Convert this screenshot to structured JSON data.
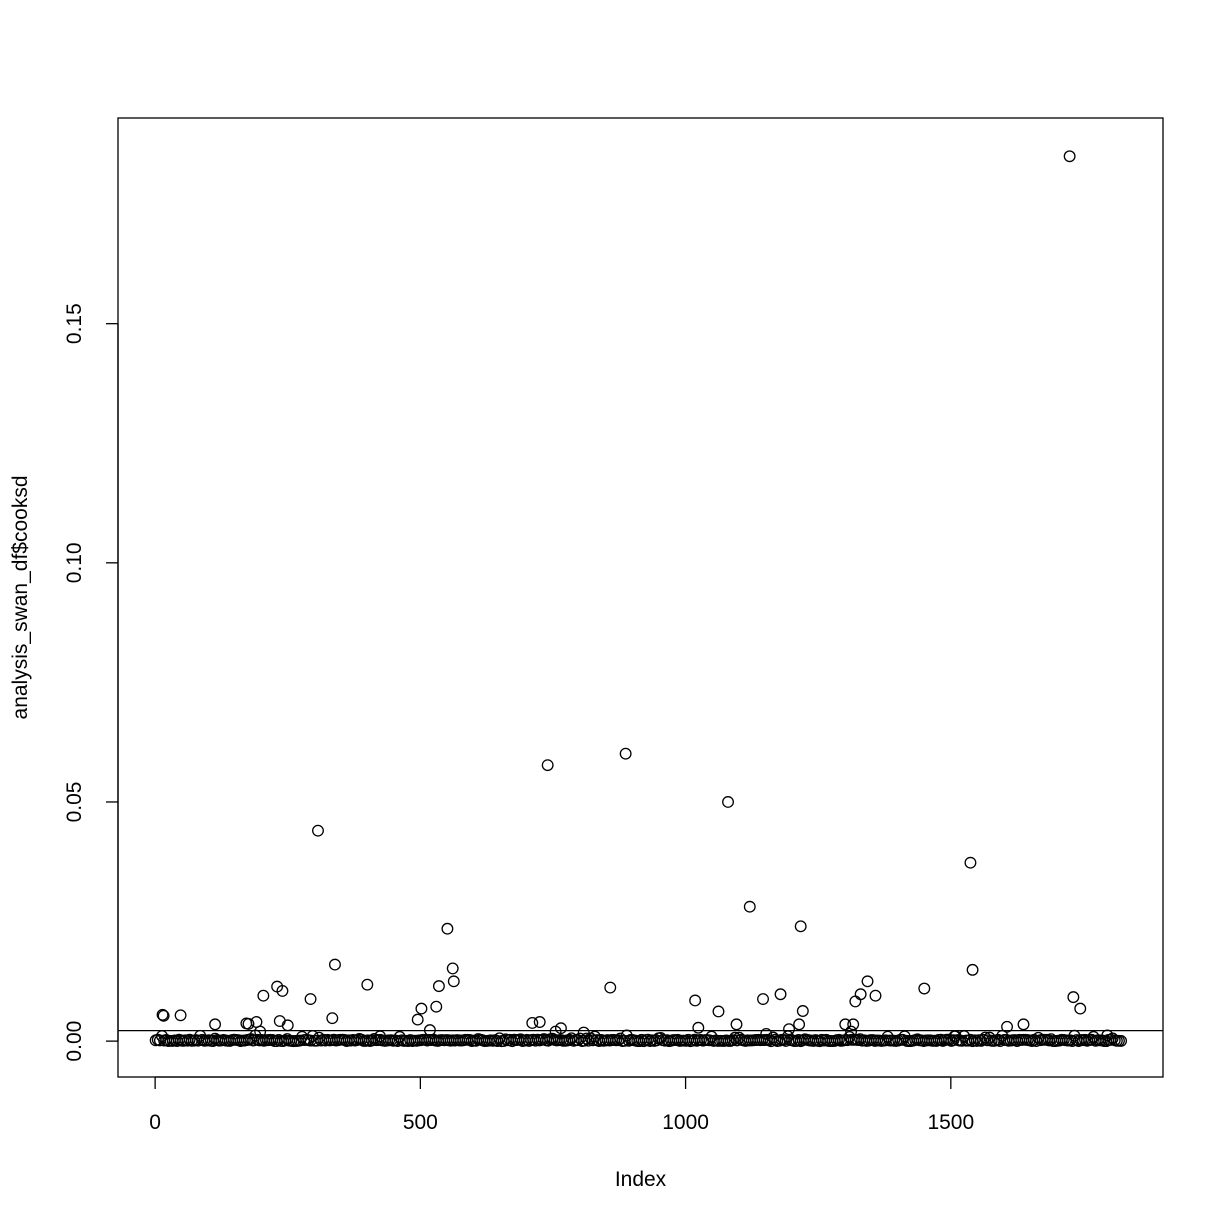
{
  "chart_data": {
    "type": "scatter",
    "title": "",
    "xlabel": "Index",
    "ylabel": "analysis_swan_df$cooksd",
    "xlim": [
      -70,
      1900
    ],
    "ylim": [
      -0.0075,
      0.193
    ],
    "x_ticks": [
      0,
      500,
      1000,
      1500
    ],
    "x_tick_labels": [
      "0",
      "500",
      "1000",
      "1500"
    ],
    "y_ticks": [
      0.0,
      0.05,
      0.1,
      0.15
    ],
    "y_tick_labels": [
      "0.00",
      "0.05",
      "0.10",
      "0.15"
    ],
    "grid": false,
    "legend": "none",
    "reference_line": {
      "orientation": "horizontal",
      "y": 0.0022
    },
    "baseline_range": [
      1,
      1824
    ],
    "points": [
      [
        14,
        0.0055
      ],
      [
        16,
        0.0053
      ],
      [
        48,
        0.0054
      ],
      [
        113,
        0.0035
      ],
      [
        172,
        0.0037
      ],
      [
        176,
        0.0036
      ],
      [
        191,
        0.004
      ],
      [
        198,
        0.002
      ],
      [
        204,
        0.0095
      ],
      [
        230,
        0.0114
      ],
      [
        235,
        0.0042
      ],
      [
        240,
        0.0105
      ],
      [
        250,
        0.0033
      ],
      [
        293,
        0.0088
      ],
      [
        307,
        0.044
      ],
      [
        334,
        0.0048
      ],
      [
        339,
        0.016
      ],
      [
        400,
        0.0118
      ],
      [
        424,
        0.001
      ],
      [
        495,
        0.0045
      ],
      [
        502,
        0.0068
      ],
      [
        518,
        0.0023
      ],
      [
        530,
        0.0072
      ],
      [
        535,
        0.0115
      ],
      [
        551,
        0.0235
      ],
      [
        561,
        0.0152
      ],
      [
        563,
        0.0125
      ],
      [
        711,
        0.0038
      ],
      [
        725,
        0.004
      ],
      [
        740,
        0.0577
      ],
      [
        755,
        0.002
      ],
      [
        765,
        0.0027
      ],
      [
        808,
        0.0018
      ],
      [
        858,
        0.0112
      ],
      [
        887,
        0.0601
      ],
      [
        1018,
        0.0085
      ],
      [
        1024,
        0.0028
      ],
      [
        1062,
        0.0062
      ],
      [
        1080,
        0.05
      ],
      [
        1096,
        0.0035
      ],
      [
        1121,
        0.0281
      ],
      [
        1146,
        0.0088
      ],
      [
        1152,
        0.0015
      ],
      [
        1179,
        0.0098
      ],
      [
        1195,
        0.0025
      ],
      [
        1214,
        0.0035
      ],
      [
        1217,
        0.024
      ],
      [
        1221,
        0.0063
      ],
      [
        1301,
        0.0035
      ],
      [
        1312,
        0.002
      ],
      [
        1316,
        0.0035
      ],
      [
        1320,
        0.0083
      ],
      [
        1330,
        0.0098
      ],
      [
        1343,
        0.0125
      ],
      [
        1358,
        0.0095
      ],
      [
        1450,
        0.011
      ],
      [
        1507,
        0.001
      ],
      [
        1537,
        0.0373
      ],
      [
        1541,
        0.0149
      ],
      [
        1606,
        0.003
      ],
      [
        1637,
        0.0035
      ],
      [
        1724,
        0.185
      ],
      [
        1731,
        0.0092
      ],
      [
        1744,
        0.0068
      ],
      [
        1795,
        0.0012
      ]
    ]
  }
}
